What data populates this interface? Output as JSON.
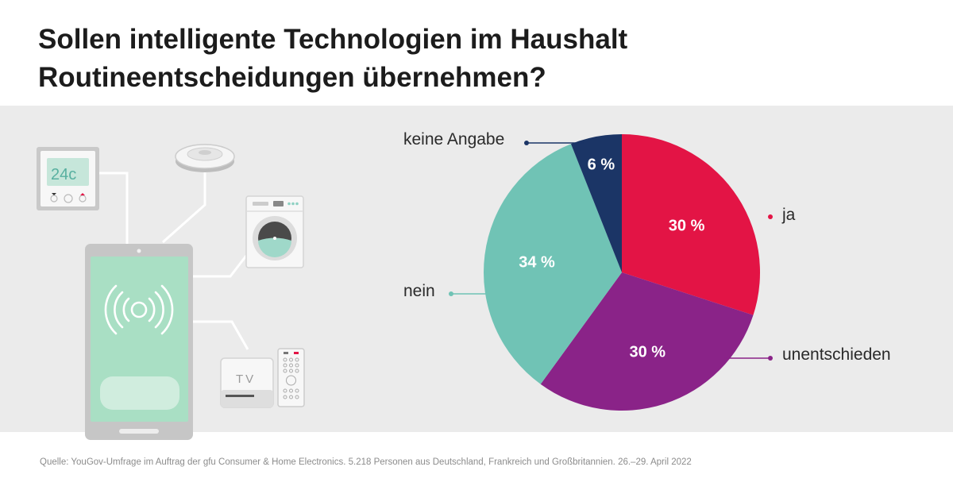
{
  "title": {
    "line1": "Sollen intelligente Technologien im Haushalt",
    "line2": "Routineentscheidungen übernehmen?"
  },
  "source": "Quelle: YouGov-Umfrage im Auftrag der gfu Consumer & Home Electronics. 5.218 Personen aus Deutschland, Frankreich und Großbritannien. 26.–29. April 2022",
  "illustration": {
    "thermostat_display": "24c",
    "tv_label": "TV",
    "icons": [
      "thermostat-icon",
      "robot-vacuum-icon",
      "washing-machine-icon",
      "tv-box-icon",
      "remote-control-icon",
      "smartphone-icon",
      "wireless-signal-icon"
    ]
  },
  "chart_data": {
    "type": "pie",
    "title": "",
    "slices": [
      {
        "label": "ja",
        "value": 30,
        "value_label": "30 %",
        "color": "#e31445"
      },
      {
        "label": "unentschieden",
        "value": 30,
        "value_label": "30 %",
        "color": "#8a2388"
      },
      {
        "label": "nein",
        "value": 34,
        "value_label": "34 %",
        "color": "#70c3b5"
      },
      {
        "label": "keine Angabe",
        "value": 6,
        "value_label": "6 %",
        "color": "#1b3566"
      }
    ],
    "start": "12 o'clock",
    "direction": "clockwise",
    "legend": "leader-line labels beside slices"
  }
}
